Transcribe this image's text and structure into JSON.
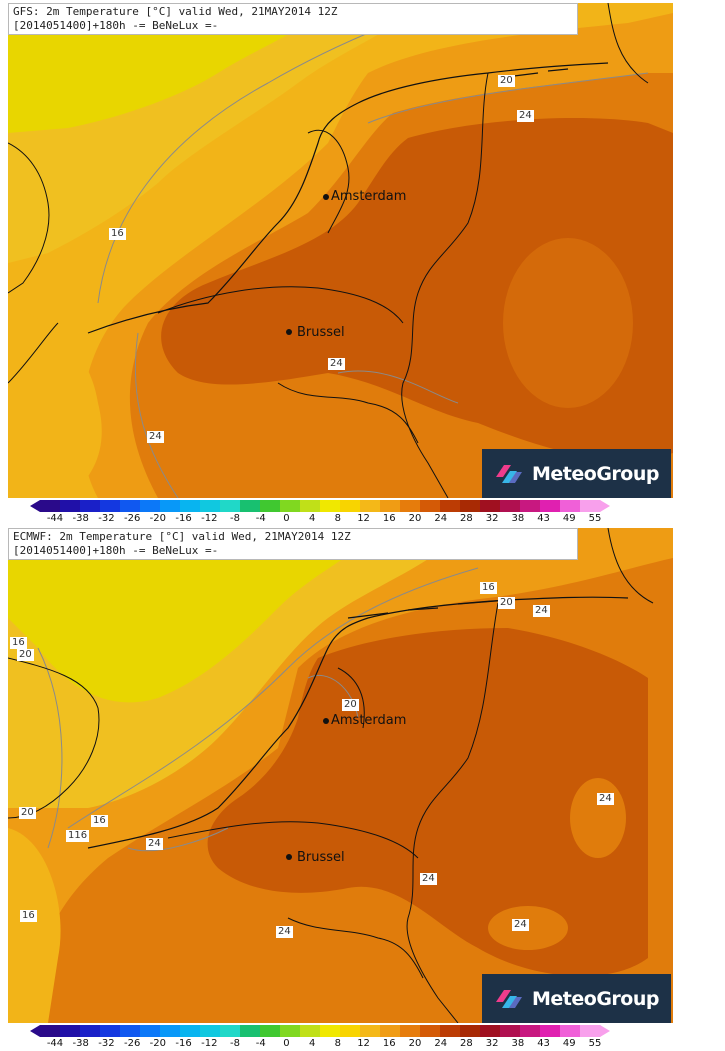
{
  "colors": {
    "sea_cool": "#e8d600",
    "land_warm": "#f0c020",
    "band_16": "#f2b418",
    "band_20": "#ee9c14",
    "band_24": "#e07c0c",
    "band_28": "#c85a06",
    "border": "#111111",
    "contour": "#8a8a8a"
  },
  "panels": [
    {
      "id": "gfs",
      "header_line1": "GFS: 2m Temperature [°C] valid Wed, 21MAY2014 12Z",
      "header_line2": "[2014051400]+180h -= BeNeLux =-",
      "cities": [
        {
          "name": "Amsterdam"
        },
        {
          "name": "Brussel"
        }
      ],
      "contour_labels": [
        "20",
        "24",
        "16",
        "24",
        "24"
      ],
      "logo_text": "MeteoGroup"
    },
    {
      "id": "ecmwf",
      "header_line1": "ECMWF: 2m Temperature [°C] valid Wed, 21MAY2014 12Z",
      "header_line2": "[2014051400]+180h -= BeNeLux =-",
      "cities": [
        {
          "name": "Amsterdam"
        },
        {
          "name": "Brussel"
        }
      ],
      "contour_labels": [
        "16",
        "20",
        "24",
        "16",
        "20",
        "20",
        "20",
        "16",
        "116",
        "24",
        "24",
        "16",
        "24",
        "24",
        "24"
      ],
      "logo_text": "MeteoGroup"
    }
  ],
  "legend": {
    "ticks": [
      "-44",
      "-38",
      "-32",
      "-26",
      "-20",
      "-16",
      "-12",
      "-8",
      "-4",
      "0",
      "4",
      "8",
      "12",
      "16",
      "20",
      "24",
      "28",
      "32",
      "38",
      "43",
      "49",
      "55"
    ],
    "colors": [
      "#2a0a8a",
      "#2010a8",
      "#1a20c8",
      "#1438e0",
      "#1058f0",
      "#0c78f8",
      "#0898f8",
      "#08b4f0",
      "#10c8e0",
      "#20d8c8",
      "#18c070",
      "#40c830",
      "#80d820",
      "#c0e018",
      "#f0e800",
      "#f8d400",
      "#f4b818",
      "#f09c14",
      "#e67c0c",
      "#d45a06",
      "#bc3c04",
      "#a82a04",
      "#a01020",
      "#b01050",
      "#c81880",
      "#e020b0",
      "#f060d8",
      "#f8a0ec"
    ]
  }
}
